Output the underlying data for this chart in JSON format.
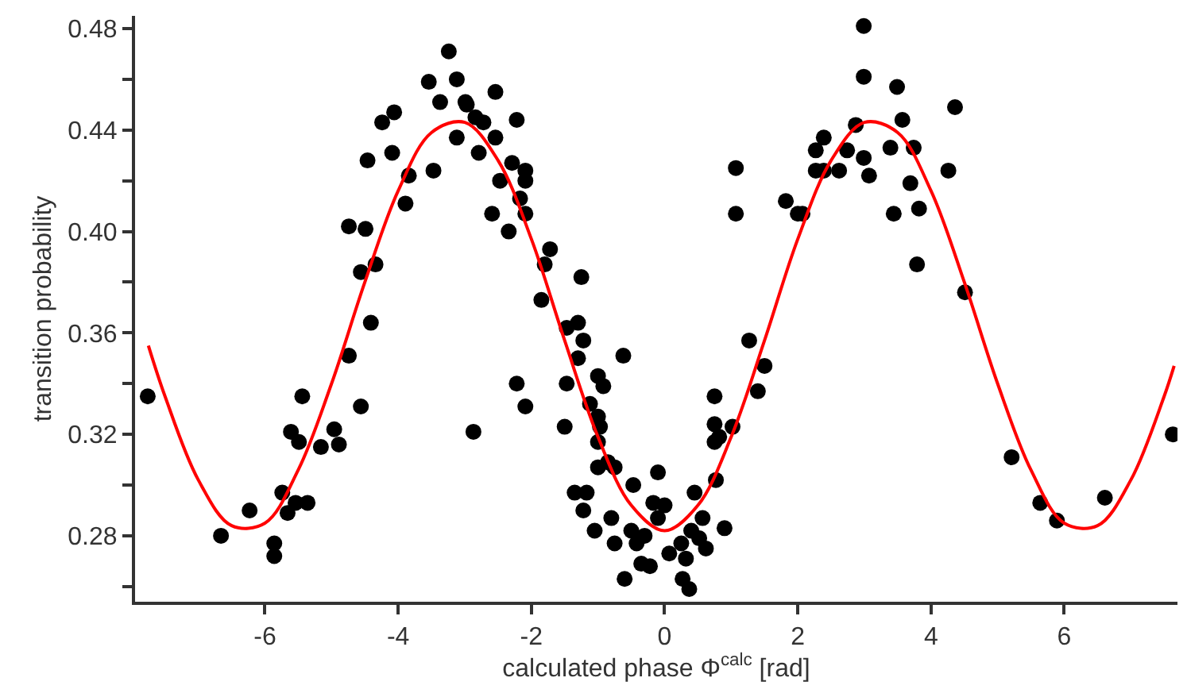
{
  "chart_data": {
    "type": "scatter",
    "xlabel": "calculated phase Φ$^{calc}$ [rad]",
    "ylabel": "transition probability",
    "xlim": [
      -7.95,
      7.7
    ],
    "ylim": [
      0.254,
      0.485
    ],
    "xticks": [
      -6,
      -4,
      -2,
      0,
      2,
      4,
      6
    ],
    "yticks": [
      {
        "value": 0.26,
        "label": null
      },
      0.28,
      {
        "value": 0.3,
        "label": null
      },
      0.32,
      {
        "value": 0.34,
        "label": null
      },
      0.36,
      {
        "value": 0.38,
        "label": null
      },
      {
        "value": 0.4,
        "label": "0.40"
      },
      {
        "value": 0.42,
        "label": null
      },
      0.44,
      {
        "value": 0.46,
        "label": null
      },
      0.48
    ],
    "marker": "circle",
    "series": [
      {
        "color": "#000000",
        "x": [
          -7.76,
          -6.66,
          -6.23,
          -5.86,
          -5.86,
          -5.74,
          -5.66,
          -5.54,
          -5.36,
          -5.61,
          -5.49,
          -5.44,
          -5.16,
          -4.96,
          -4.89,
          -4.74,
          -4.56,
          -4.74,
          -4.49,
          -4.56,
          -4.34,
          -4.41,
          -4.46,
          -4.24,
          -4.06,
          -4.09,
          -3.84,
          -3.89,
          -3.47,
          -3.54,
          -3.37,
          -3.24,
          -3.12,
          -2.99,
          -3.12,
          -2.87,
          -2.97,
          -2.84,
          -2.54,
          -2.72,
          -2.54,
          -2.79,
          -2.22,
          -2.29,
          -2.09,
          -2.47,
          -2.09,
          -2.17,
          -2.09,
          -2.59,
          -2.34,
          -1.72,
          -1.8,
          -1.25,
          -1.85,
          -1.47,
          -1.3,
          -1.22,
          -1.3,
          -0.62,
          -2.22,
          -2.09,
          -1.47,
          -1.0,
          -0.92,
          -1.12,
          -1.0,
          -1.5,
          -0.97,
          -1.0,
          -0.85,
          -1.0,
          -0.75,
          -1.35,
          -1.17,
          -1.22,
          -1.05,
          -0.8,
          -0.75,
          -0.47,
          -0.6,
          -0.35,
          -0.22,
          -0.5,
          -0.42,
          -0.3,
          -0.1,
          -0.17,
          0.0,
          -0.1,
          0.07,
          0.25,
          0.32,
          0.27,
          0.37,
          0.45,
          0.57,
          0.4,
          0.52,
          0.62,
          0.9,
          0.75,
          0.75,
          0.82,
          0.75,
          1.02,
          0.77,
          1.07,
          1.07,
          1.27,
          1.5,
          1.4,
          1.82,
          2.0,
          2.07,
          2.27,
          2.39,
          2.27,
          2.39,
          2.62,
          2.74,
          2.87,
          2.99,
          3.07,
          2.99,
          2.99,
          3.49,
          3.57,
          3.39,
          3.74,
          3.69,
          3.44,
          3.82,
          3.79,
          4.36,
          4.26,
          4.51,
          5.21,
          5.64,
          5.89,
          6.61,
          7.63
        ],
        "values": [
          0.335,
          0.28,
          0.29,
          0.277,
          0.272,
          0.297,
          0.289,
          0.293,
          0.293,
          0.321,
          0.317,
          0.335,
          0.315,
          0.322,
          0.316,
          0.351,
          0.331,
          0.402,
          0.401,
          0.384,
          0.387,
          0.364,
          0.428,
          0.443,
          0.447,
          0.431,
          0.422,
          0.411,
          0.424,
          0.459,
          0.451,
          0.471,
          0.46,
          0.451,
          0.437,
          0.321,
          0.45,
          0.445,
          0.455,
          0.443,
          0.437,
          0.431,
          0.444,
          0.427,
          0.424,
          0.42,
          0.42,
          0.413,
          0.407,
          0.407,
          0.4,
          0.393,
          0.387,
          0.382,
          0.373,
          0.362,
          0.364,
          0.357,
          0.35,
          0.351,
          0.34,
          0.331,
          0.34,
          0.343,
          0.339,
          0.332,
          0.327,
          0.323,
          0.323,
          0.317,
          0.309,
          0.307,
          0.307,
          0.297,
          0.297,
          0.29,
          0.282,
          0.287,
          0.277,
          0.3,
          0.263,
          0.269,
          0.268,
          0.282,
          0.277,
          0.28,
          0.305,
          0.293,
          0.292,
          0.287,
          0.273,
          0.277,
          0.271,
          0.263,
          0.259,
          0.297,
          0.287,
          0.282,
          0.279,
          0.275,
          0.283,
          0.335,
          0.324,
          0.319,
          0.317,
          0.323,
          0.302,
          0.425,
          0.407,
          0.357,
          0.347,
          0.337,
          0.412,
          0.407,
          0.407,
          0.432,
          0.437,
          0.424,
          0.424,
          0.424,
          0.432,
          0.442,
          0.429,
          0.422,
          0.481,
          0.461,
          0.457,
          0.444,
          0.433,
          0.433,
          0.419,
          0.407,
          0.409,
          0.387,
          0.449,
          0.424,
          0.376,
          0.311,
          0.293,
          0.286,
          0.295,
          0.32
        ]
      },
      {
        "type": "line",
        "color": "#ff0000",
        "marker": "none",
        "line_style": "solid",
        "x": [
          -7.75,
          -7.5,
          -7.0,
          -6.5,
          -6.0,
          -5.5,
          -5.0,
          -4.5,
          -4.0,
          -3.5,
          -3.0,
          -2.5,
          -2.0,
          -1.5,
          -1.0,
          -0.5,
          0,
          0.5,
          1.0,
          1.5,
          2.0,
          2.5,
          3.0,
          3.5,
          4.0,
          4.5,
          5.0,
          5.5,
          6.0,
          6.5,
          7.0,
          7.5,
          7.65
        ],
        "values": [
          0.355,
          0.335,
          0.302,
          0.284,
          0.285,
          0.306,
          0.34,
          0.38,
          0.416,
          0.439,
          0.443,
          0.428,
          0.397,
          0.357,
          0.319,
          0.292,
          0.282,
          0.292,
          0.319,
          0.357,
          0.397,
          0.428,
          0.443,
          0.439,
          0.416,
          0.38,
          0.34,
          0.306,
          0.285,
          0.284,
          0.302,
          0.335,
          0.347
        ]
      }
    ]
  }
}
